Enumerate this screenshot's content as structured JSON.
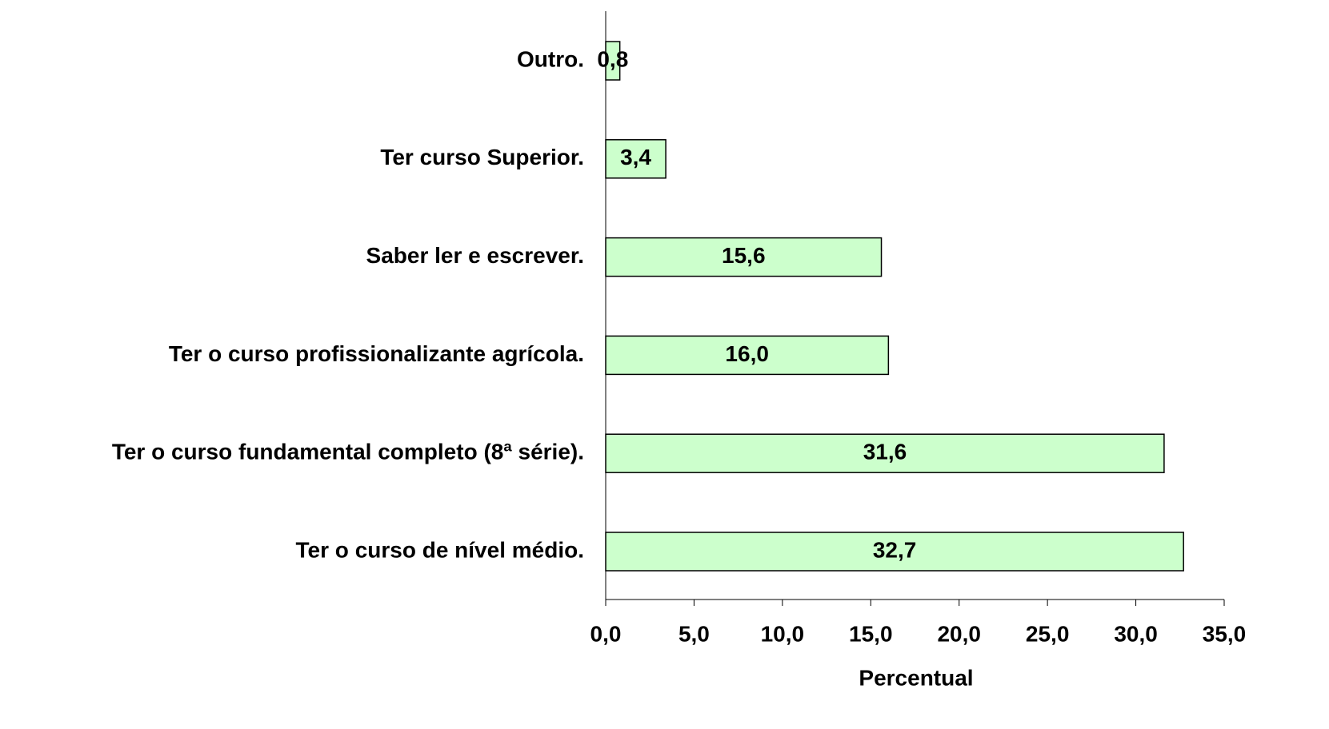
{
  "chart_data": {
    "type": "hbar",
    "categories": [
      "Outro.",
      "Ter curso Superior.",
      "Saber ler e escrever.",
      "Ter o curso profissionalizante agrícola.",
      "Ter o curso fundamental completo (8ª série).",
      "Ter o curso de nível médio."
    ],
    "values": [
      0.8,
      3.4,
      15.6,
      16.0,
      31.6,
      32.7
    ],
    "value_labels": [
      "0,8",
      "3,4",
      "15,6",
      "16,0",
      "31,6",
      "32,7"
    ],
    "color": "#ccffcc",
    "xlabel": "Percentual",
    "xlim": [
      0,
      35
    ],
    "xticks": [
      {
        "value": 0,
        "label": "0,0"
      },
      {
        "value": 5,
        "label": "5,0"
      },
      {
        "value": 10,
        "label": "10,0"
      },
      {
        "value": 15,
        "label": "15,0"
      },
      {
        "value": 20,
        "label": "20,0"
      },
      {
        "value": 25,
        "label": "25,0"
      },
      {
        "value": 30,
        "label": "30,0"
      },
      {
        "value": 35,
        "label": "35,0"
      }
    ]
  }
}
